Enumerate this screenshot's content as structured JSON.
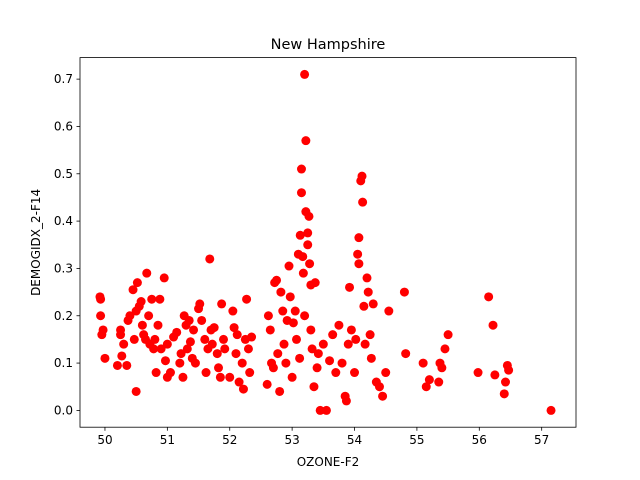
{
  "chart_data": {
    "type": "scatter",
    "title": "New Hampshire",
    "xlabel": "OZONE-F2",
    "ylabel": "DEMOGIDX_2-F14",
    "xlim": [
      49.6,
      57.55
    ],
    "ylim": [
      -0.0355,
      0.7455
    ],
    "xticks": [
      "50",
      "51",
      "52",
      "53",
      "54",
      "55",
      "56",
      "57"
    ],
    "yticks": [
      "0.0",
      "0.1",
      "0.2",
      "0.3",
      "0.4",
      "0.5",
      "0.6",
      "0.7"
    ],
    "grid": false,
    "legend": "none",
    "color": "#ff0000",
    "series": [
      {
        "points": [
          [
            49.92,
            0.24
          ],
          [
            49.93,
            0.235
          ],
          [
            49.93,
            0.2
          ],
          [
            49.95,
            0.16
          ],
          [
            49.97,
            0.17
          ],
          [
            50.0,
            0.11
          ],
          [
            50.2,
            0.095
          ],
          [
            50.25,
            0.16
          ],
          [
            50.25,
            0.17
          ],
          [
            50.27,
            0.115
          ],
          [
            50.3,
            0.14
          ],
          [
            50.35,
            0.095
          ],
          [
            50.37,
            0.19
          ],
          [
            50.4,
            0.2
          ],
          [
            50.45,
            0.255
          ],
          [
            50.47,
            0.15
          ],
          [
            50.5,
            0.21
          ],
          [
            50.52,
            0.27
          ],
          [
            50.5,
            0.04
          ],
          [
            50.55,
            0.22
          ],
          [
            50.58,
            0.23
          ],
          [
            50.6,
            0.18
          ],
          [
            50.62,
            0.16
          ],
          [
            50.65,
            0.15
          ],
          [
            50.67,
            0.29
          ],
          [
            50.7,
            0.2
          ],
          [
            50.72,
            0.14
          ],
          [
            50.75,
            0.235
          ],
          [
            50.78,
            0.13
          ],
          [
            50.8,
            0.15
          ],
          [
            50.82,
            0.08
          ],
          [
            50.85,
            0.18
          ],
          [
            50.88,
            0.235
          ],
          [
            50.9,
            0.13
          ],
          [
            50.95,
            0.28
          ],
          [
            50.97,
            0.105
          ],
          [
            51.0,
            0.07
          ],
          [
            51.0,
            0.14
          ],
          [
            51.05,
            0.08
          ],
          [
            51.1,
            0.155
          ],
          [
            51.15,
            0.165
          ],
          [
            51.2,
            0.1
          ],
          [
            51.22,
            0.12
          ],
          [
            51.25,
            0.07
          ],
          [
            51.27,
            0.2
          ],
          [
            51.3,
            0.18
          ],
          [
            51.32,
            0.13
          ],
          [
            51.35,
            0.19
          ],
          [
            51.37,
            0.145
          ],
          [
            51.4,
            0.11
          ],
          [
            51.42,
            0.17
          ],
          [
            51.45,
            0.1
          ],
          [
            51.5,
            0.215
          ],
          [
            51.52,
            0.225
          ],
          [
            51.55,
            0.19
          ],
          [
            51.6,
            0.15
          ],
          [
            51.62,
            0.08
          ],
          [
            51.65,
            0.13
          ],
          [
            51.68,
            0.32
          ],
          [
            51.7,
            0.17
          ],
          [
            51.72,
            0.14
          ],
          [
            51.75,
            0.175
          ],
          [
            51.8,
            0.12
          ],
          [
            51.82,
            0.09
          ],
          [
            51.85,
            0.07
          ],
          [
            51.87,
            0.225
          ],
          [
            51.9,
            0.15
          ],
          [
            51.92,
            0.13
          ],
          [
            52.0,
            0.07
          ],
          [
            52.05,
            0.21
          ],
          [
            52.07,
            0.175
          ],
          [
            52.1,
            0.12
          ],
          [
            52.12,
            0.16
          ],
          [
            52.15,
            0.06
          ],
          [
            52.2,
            0.1
          ],
          [
            52.22,
            0.045
          ],
          [
            52.25,
            0.15
          ],
          [
            52.27,
            0.235
          ],
          [
            52.3,
            0.13
          ],
          [
            52.32,
            0.08
          ],
          [
            52.35,
            0.155
          ],
          [
            52.6,
            0.055
          ],
          [
            52.62,
            0.2
          ],
          [
            52.65,
            0.17
          ],
          [
            52.67,
            0.1
          ],
          [
            52.7,
            0.09
          ],
          [
            52.72,
            0.27
          ],
          [
            52.75,
            0.275
          ],
          [
            52.77,
            0.12
          ],
          [
            52.8,
            0.04
          ],
          [
            52.82,
            0.25
          ],
          [
            52.85,
            0.21
          ],
          [
            52.87,
            0.14
          ],
          [
            52.9,
            0.1
          ],
          [
            52.92,
            0.19
          ],
          [
            52.95,
            0.305
          ],
          [
            52.97,
            0.24
          ],
          [
            53.0,
            0.07
          ],
          [
            53.02,
            0.185
          ],
          [
            53.05,
            0.21
          ],
          [
            53.07,
            0.15
          ],
          [
            53.1,
            0.33
          ],
          [
            53.12,
            0.11
          ],
          [
            53.13,
            0.37
          ],
          [
            53.15,
            0.46
          ],
          [
            53.15,
            0.51
          ],
          [
            53.17,
            0.325
          ],
          [
            53.18,
            0.29
          ],
          [
            53.2,
            0.71
          ],
          [
            53.2,
            0.2
          ],
          [
            53.22,
            0.57
          ],
          [
            53.22,
            0.42
          ],
          [
            53.25,
            0.375
          ],
          [
            53.25,
            0.35
          ],
          [
            53.27,
            0.41
          ],
          [
            53.28,
            0.31
          ],
          [
            53.3,
            0.265
          ],
          [
            53.3,
            0.17
          ],
          [
            53.32,
            0.13
          ],
          [
            53.35,
            0.05
          ],
          [
            53.37,
            0.27
          ],
          [
            53.4,
            0.09
          ],
          [
            53.42,
            0.12
          ],
          [
            53.45,
            0.0
          ],
          [
            53.5,
            0.14
          ],
          [
            53.55,
            0.0
          ],
          [
            53.6,
            0.105
          ],
          [
            53.65,
            0.16
          ],
          [
            53.7,
            0.08
          ],
          [
            53.75,
            0.18
          ],
          [
            53.8,
            0.1
          ],
          [
            53.85,
            0.03
          ],
          [
            53.87,
            0.02
          ],
          [
            53.9,
            0.14
          ],
          [
            53.92,
            0.26
          ],
          [
            53.95,
            0.17
          ],
          [
            54.0,
            0.08
          ],
          [
            54.02,
            0.15
          ],
          [
            54.05,
            0.33
          ],
          [
            54.07,
            0.31
          ],
          [
            54.07,
            0.365
          ],
          [
            54.1,
            0.485
          ],
          [
            54.12,
            0.495
          ],
          [
            54.13,
            0.44
          ],
          [
            54.15,
            0.22
          ],
          [
            54.17,
            0.14
          ],
          [
            54.2,
            0.28
          ],
          [
            54.22,
            0.25
          ],
          [
            54.25,
            0.16
          ],
          [
            54.27,
            0.11
          ],
          [
            54.3,
            0.225
          ],
          [
            54.35,
            0.06
          ],
          [
            54.4,
            0.05
          ],
          [
            54.45,
            0.03
          ],
          [
            54.5,
            0.08
          ],
          [
            54.55,
            0.21
          ],
          [
            54.8,
            0.25
          ],
          [
            54.82,
            0.12
          ],
          [
            55.1,
            0.1
          ],
          [
            55.15,
            0.05
          ],
          [
            55.2,
            0.065
          ],
          [
            55.35,
            0.06
          ],
          [
            55.37,
            0.1
          ],
          [
            55.4,
            0.09
          ],
          [
            55.45,
            0.13
          ],
          [
            55.5,
            0.16
          ],
          [
            55.98,
            0.08
          ],
          [
            56.15,
            0.24
          ],
          [
            56.22,
            0.18
          ],
          [
            56.25,
            0.075
          ],
          [
            56.4,
            0.035
          ],
          [
            56.42,
            0.06
          ],
          [
            56.45,
            0.095
          ],
          [
            56.47,
            0.085
          ],
          [
            57.15,
            0.0
          ]
        ]
      }
    ]
  }
}
